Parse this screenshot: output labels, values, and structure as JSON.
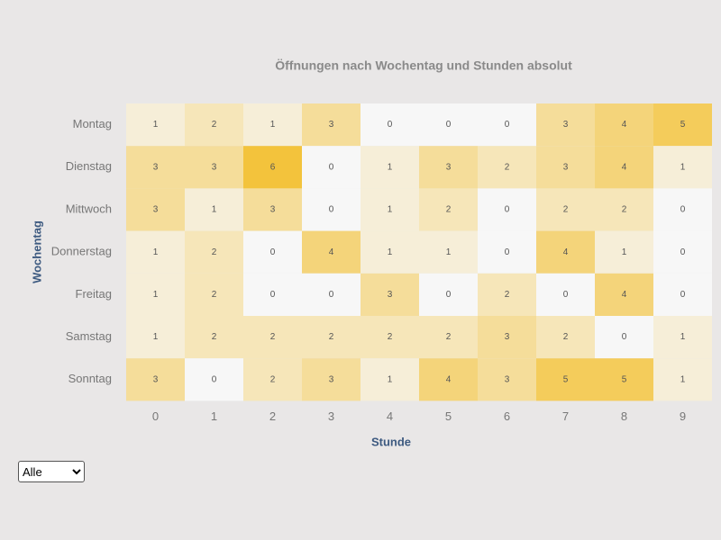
{
  "chart_data": {
    "type": "heatmap",
    "title": "Öffnungen nach Wochentag und Stunden absolut",
    "x_label": "Stunde",
    "y_label": "Wochentag",
    "x": [
      0,
      1,
      2,
      3,
      4,
      5,
      6,
      7,
      8,
      9
    ],
    "categories": [
      "Montag",
      "Dienstag",
      "Mittwoch",
      "Donnerstag",
      "Freitag",
      "Samstag",
      "Sonntag"
    ],
    "values": [
      [
        1,
        2,
        1,
        3,
        0,
        0,
        0,
        3,
        4,
        5
      ],
      [
        3,
        3,
        6,
        0,
        1,
        3,
        2,
        3,
        4,
        1
      ],
      [
        3,
        1,
        3,
        0,
        1,
        2,
        0,
        2,
        2,
        0
      ],
      [
        1,
        2,
        0,
        4,
        1,
        1,
        0,
        4,
        1,
        0
      ],
      [
        1,
        2,
        0,
        0,
        3,
        0,
        2,
        0,
        4,
        0
      ],
      [
        1,
        2,
        2,
        2,
        2,
        2,
        3,
        2,
        0,
        1
      ],
      [
        3,
        0,
        2,
        3,
        1,
        4,
        3,
        5,
        5,
        1
      ]
    ],
    "colorscale": [
      "#f7f7f7",
      "#f3c33c"
    ]
  },
  "controls": {
    "filter": "Alle"
  }
}
